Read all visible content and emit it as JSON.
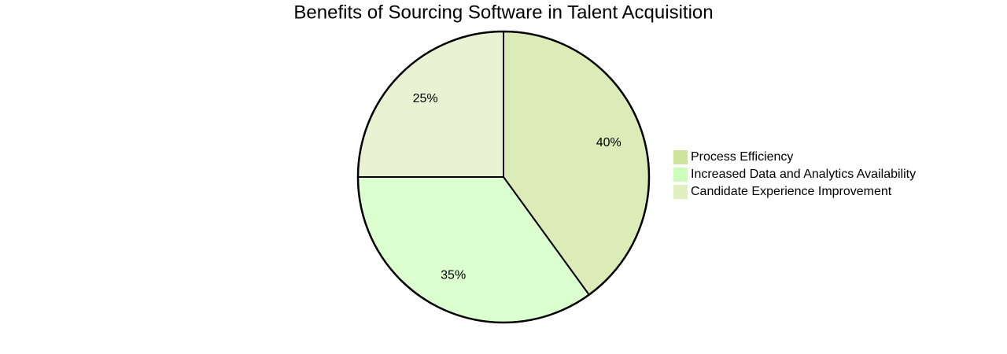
{
  "chart_data": {
    "type": "pie",
    "title": "Benefits of Sourcing Software in Talent Acquisition",
    "categories": [
      "Process Efficiency",
      "Increased Data and Analytics Availability",
      "Candidate Experience Improvement"
    ],
    "values": [
      40,
      35,
      25
    ],
    "value_labels": [
      "40%",
      "35%",
      "25%"
    ],
    "colors": [
      "#cde49b",
      "#ccffbb",
      "#e0eec0"
    ]
  }
}
